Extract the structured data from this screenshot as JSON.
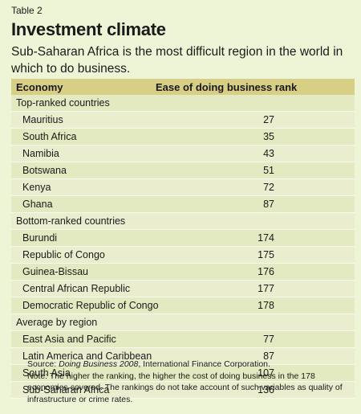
{
  "table_label": "Table 2",
  "title": "Investment climate",
  "subtitle": "Sub-Saharan Africa is the most difficult region in the world in which to do business.",
  "columns": [
    "Economy",
    "Ease of doing business rank"
  ],
  "sections": [
    {
      "label": "Top-ranked countries",
      "rows": [
        {
          "name": "Mauritius",
          "rank": "27"
        },
        {
          "name": "South Africa",
          "rank": "35"
        },
        {
          "name": "Namibia",
          "rank": "43"
        },
        {
          "name": "Botswana",
          "rank": "51"
        },
        {
          "name": "Kenya",
          "rank": "72"
        },
        {
          "name": "Ghana",
          "rank": "87"
        }
      ]
    },
    {
      "label": "Bottom-ranked countries",
      "rows": [
        {
          "name": "Burundi",
          "rank": "174"
        },
        {
          "name": "Republic of Congo",
          "rank": "175"
        },
        {
          "name": "Guinea-Bissau",
          "rank": "176"
        },
        {
          "name": "Central African Republic",
          "rank": "177"
        },
        {
          "name": "Democratic Republic of Congo",
          "rank": "178"
        }
      ]
    },
    {
      "label": "Average by region",
      "rows": [
        {
          "name": "East Asia and Pacific",
          "rank": "77"
        },
        {
          "name": "Latin America and Caribbean",
          "rank": "87"
        },
        {
          "name": "South Asia",
          "rank": "107"
        },
        {
          "name": "Sub-Saharan Africa",
          "rank": "136"
        }
      ]
    }
  ],
  "source": {
    "prefix": "Source: ",
    "italic": "Doing Business 2008",
    "suffix": ", International Finance Corporation."
  },
  "note": "Note: The higher the ranking, the higher the cost of doing business in the 178 economies covered. The rankings do not take account of such variables as quality of infrastructure or crime rates."
}
